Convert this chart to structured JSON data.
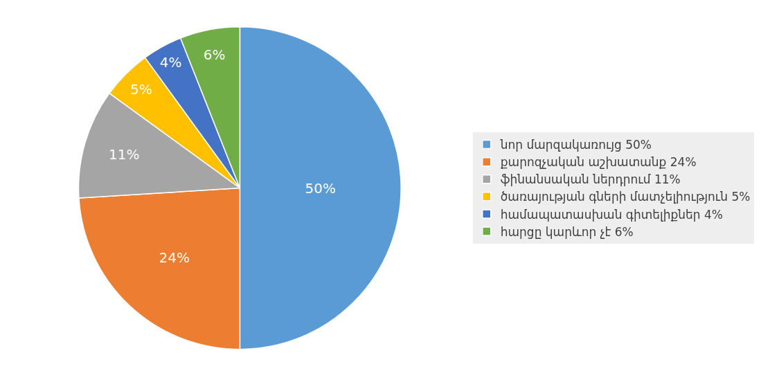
{
  "chart_data": {
    "type": "pie",
    "categories": [
      "նոր մարզակառույց 50%",
      "քարոզչական աշխատանք 24%",
      "ֆինանսական ներդրում 11%",
      "ծառայության գների մատչելիություն 5%",
      "համապատասխան գիտելիքներ 4%",
      "հարցը կարևոր չէ 6%"
    ],
    "values": [
      50,
      24,
      11,
      5,
      4,
      6
    ],
    "colors": [
      "#5b9bd5",
      "#ed7d31",
      "#a5a5a5",
      "#ffc000",
      "#4472c4",
      "#70ad47"
    ],
    "value_labels": [
      "50%",
      "24%",
      "11%",
      "5%",
      "4%",
      "6%"
    ],
    "legend": "right"
  }
}
